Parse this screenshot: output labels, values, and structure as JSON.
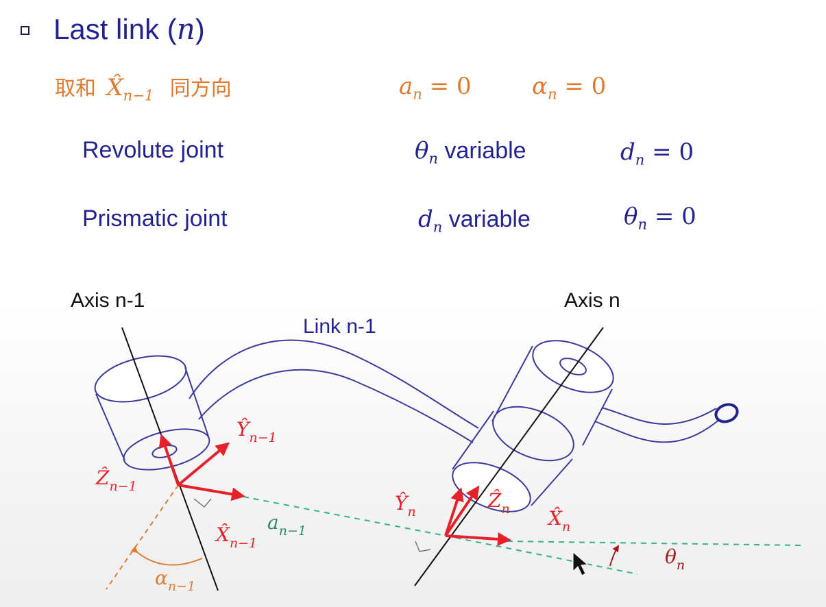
{
  "heading": {
    "prefix": "Last link (",
    "var": "n",
    "suffix": ")"
  },
  "line1": {
    "cjk_prefix": "取和",
    "xhat": "X̂",
    "xhat_sub": "n−1",
    "cjk_suffix": "同方向",
    "a_var": "a",
    "a_sub": "n",
    "a_rest": " = 0",
    "alpha_var": "α",
    "alpha_sub": "n",
    "alpha_rest": " = 0"
  },
  "revolute": {
    "label": "Revolute joint",
    "var": "θ",
    "var_sub": "n",
    "var_word": " variable",
    "fixed_var": "d",
    "fixed_sub": "n",
    "fixed_rest": " = 0"
  },
  "prismatic": {
    "label": "Prismatic joint",
    "var": "d",
    "var_sub": "n",
    "var_word": " variable",
    "fixed_var": "θ",
    "fixed_sub": "n",
    "fixed_rest": " = 0"
  },
  "diagram": {
    "axis_left": "Axis n-1",
    "axis_right": "Axis n",
    "link": "Link n-1",
    "y_prev": "Ŷ",
    "y_prev_sub": "n−1",
    "z_prev": "Ẑ",
    "z_prev_sub": "n−1",
    "x_prev": "X̂",
    "x_prev_sub": "n−1",
    "a_prev": "a",
    "a_prev_sub": "n−1",
    "alpha_prev": "α",
    "alpha_prev_sub": "n−1",
    "y_n": "Ŷ",
    "y_n_sub": "n",
    "z_n": "Ẑ",
    "z_n_sub": "n",
    "x_n": "X̂",
    "x_n_sub": "n",
    "theta_n": "θ",
    "theta_n_sub": "n"
  },
  "colors": {
    "navy": "#23238e",
    "orange": "#e07a2e",
    "red": "#e8202a",
    "green": "#2fb38a",
    "dark_red": "#a31a1a",
    "teal_text": "#2b8a6e",
    "link_outline": "#3a3a9a"
  }
}
